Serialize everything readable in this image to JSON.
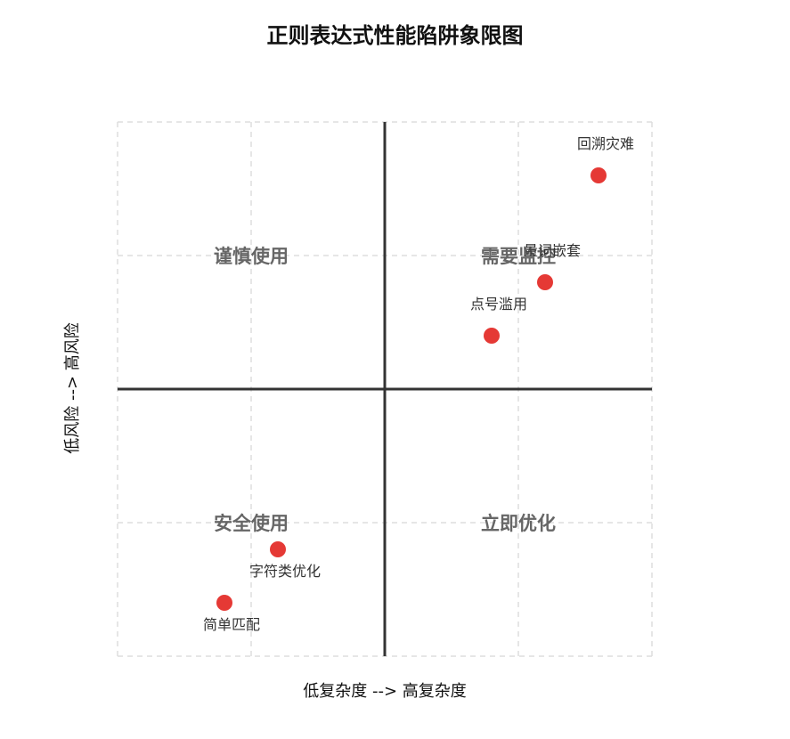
{
  "chart_data": {
    "type": "scatter",
    "title": "正则表达式性能陷阱象限图",
    "xlabel": "低复杂度 --> 高复杂度",
    "ylabel": "低风险 --> 高风险",
    "xlim": [
      0,
      1
    ],
    "ylim": [
      0,
      1
    ],
    "grid": true,
    "quadrants": [
      {
        "label": "谨慎使用",
        "position": "top-left"
      },
      {
        "label": "需要监控",
        "position": "top-right"
      },
      {
        "label": "安全使用",
        "position": "bottom-left"
      },
      {
        "label": "立即优化",
        "position": "bottom-right"
      }
    ],
    "points": [
      {
        "name": "回溯灾难",
        "x": 0.9,
        "y": 0.9
      },
      {
        "name": "量词嵌套",
        "x": 0.8,
        "y": 0.7
      },
      {
        "name": "点号滥用",
        "x": 0.7,
        "y": 0.6
      },
      {
        "name": "字符类优化",
        "x": 0.3,
        "y": 0.2
      },
      {
        "name": "简单匹配",
        "x": 0.2,
        "y": 0.1
      }
    ],
    "colors": {
      "point": "#e53935",
      "axis": "#333333",
      "grid": "#dddddd",
      "quadrant_label": "#666666",
      "point_label": "#333333"
    }
  }
}
